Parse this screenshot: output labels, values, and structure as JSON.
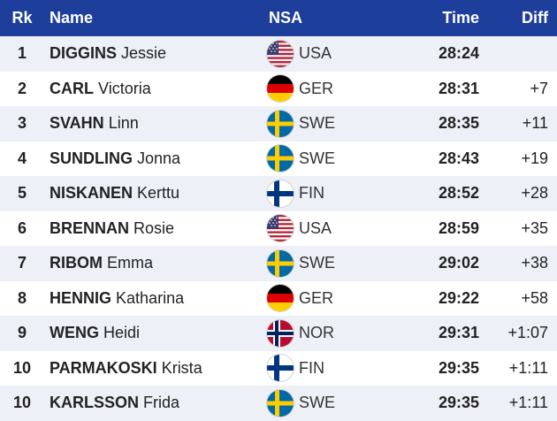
{
  "header": {
    "rk": "Rk",
    "name": "Name",
    "nsa": "NSA",
    "time": "Time",
    "diff": "Diff"
  },
  "colors": {
    "header_bg": "#1e3e9c",
    "row_alt": "#eef0f8"
  },
  "rows": [
    {
      "rank": "1",
      "last": "DIGGINS",
      "first": "Jessie",
      "flag": "usa-flag-icon",
      "nsa": "USA",
      "time": "28:24",
      "diff": ""
    },
    {
      "rank": "2",
      "last": "CARL",
      "first": "Victoria",
      "flag": "germany-flag-icon",
      "nsa": "GER",
      "time": "28:31",
      "diff": "+7"
    },
    {
      "rank": "3",
      "last": "SVAHN",
      "first": "Linn",
      "flag": "sweden-flag-icon",
      "nsa": "SWE",
      "time": "28:35",
      "diff": "+11"
    },
    {
      "rank": "4",
      "last": "SUNDLING",
      "first": "Jonna",
      "flag": "sweden-flag-icon",
      "nsa": "SWE",
      "time": "28:43",
      "diff": "+19"
    },
    {
      "rank": "5",
      "last": "NISKANEN",
      "first": "Kerttu",
      "flag": "finland-flag-icon",
      "nsa": "FIN",
      "time": "28:52",
      "diff": "+28"
    },
    {
      "rank": "6",
      "last": "BRENNAN",
      "first": "Rosie",
      "flag": "usa-flag-icon",
      "nsa": "USA",
      "time": "28:59",
      "diff": "+35"
    },
    {
      "rank": "7",
      "last": "RIBOM",
      "first": "Emma",
      "flag": "sweden-flag-icon",
      "nsa": "SWE",
      "time": "29:02",
      "diff": "+38"
    },
    {
      "rank": "8",
      "last": "HENNIG",
      "first": "Katharina",
      "flag": "germany-flag-icon",
      "nsa": "GER",
      "time": "29:22",
      "diff": "+58"
    },
    {
      "rank": "9",
      "last": "WENG",
      "first": "Heidi",
      "flag": "norway-flag-icon",
      "nsa": "NOR",
      "time": "29:31",
      "diff": "+1:07"
    },
    {
      "rank": "10",
      "last": "PARMAKOSKI",
      "first": "Krista",
      "flag": "finland-flag-icon",
      "nsa": "FIN",
      "time": "29:35",
      "diff": "+1:11"
    },
    {
      "rank": "10",
      "last": "KARLSSON",
      "first": "Frida",
      "flag": "sweden-flag-icon",
      "nsa": "SWE",
      "time": "29:35",
      "diff": "+1:11"
    }
  ]
}
